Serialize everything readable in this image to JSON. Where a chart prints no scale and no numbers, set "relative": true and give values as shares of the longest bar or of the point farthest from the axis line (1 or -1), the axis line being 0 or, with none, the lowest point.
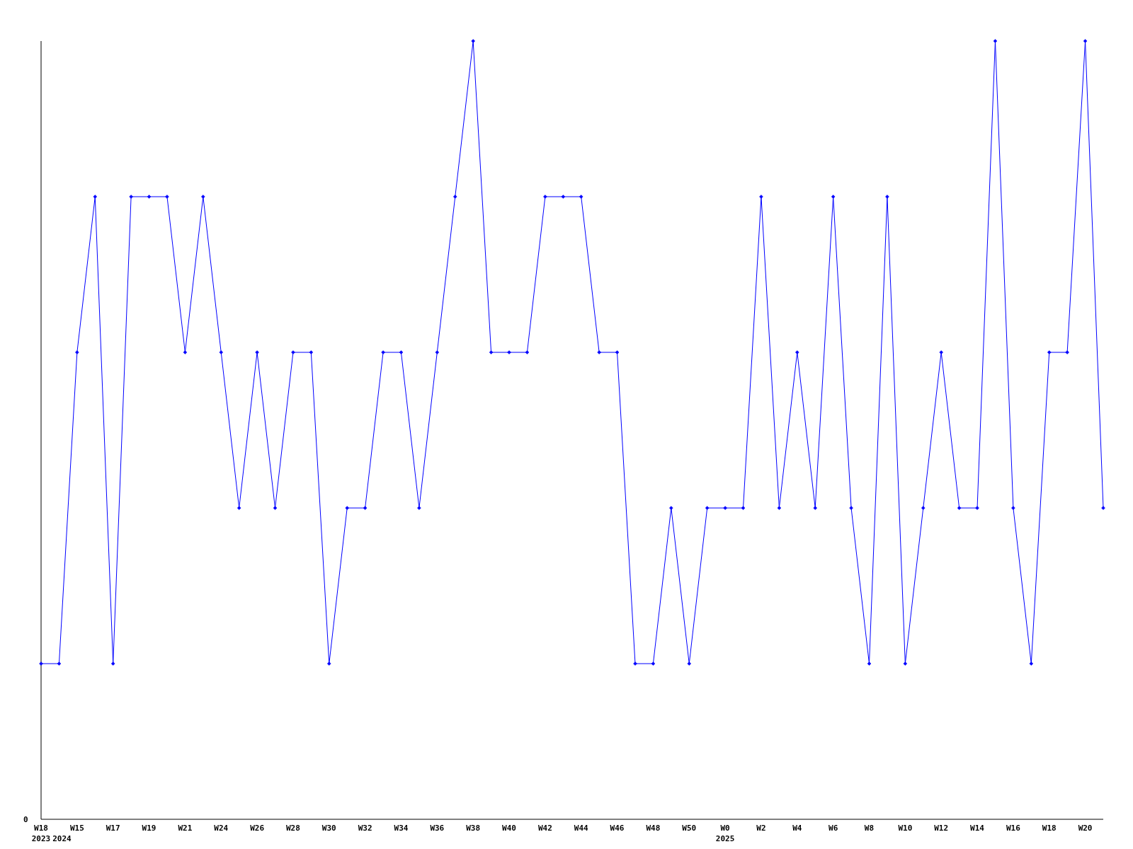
{
  "chart_data": {
    "type": "line",
    "relative": true,
    "color": "#0000ff",
    "marker": "diamond",
    "line_style": "solid",
    "categories": [
      "W18\n2023",
      "\n2024",
      "W15",
      null,
      "W17",
      null,
      "W19",
      null,
      "W21",
      null,
      "W24",
      null,
      "W26",
      null,
      "W28",
      null,
      "W30",
      null,
      "W32",
      null,
      "W34",
      null,
      "W36",
      null,
      "W38",
      null,
      "W40",
      null,
      "W42",
      null,
      "W44",
      null,
      "W46",
      null,
      "W48",
      null,
      "W50",
      null,
      "W0\n2025",
      null,
      "W2",
      null,
      "W4",
      null,
      "W6",
      null,
      "W8",
      null,
      "W10",
      null,
      "W12",
      null,
      "W14",
      null,
      "W16",
      null,
      "W18",
      null,
      "W20",
      null
    ],
    "values": [
      0.2,
      0.2,
      0.6,
      0.8,
      0.2,
      0.8,
      0.8,
      0.8,
      0.6,
      0.8,
      0.6,
      0.4,
      0.6,
      0.4,
      0.6,
      0.6,
      0.2,
      0.4,
      0.4,
      0.6,
      0.6,
      0.4,
      0.6,
      0.8,
      1,
      0.6,
      0.6,
      0.6,
      0.8,
      0.8,
      0.8,
      0.6,
      0.6,
      0.2,
      0.2,
      0.4,
      0.2,
      0.4,
      0.4,
      0.4,
      0.8,
      0.4,
      0.6,
      0.4,
      0.8,
      0.4,
      0.2,
      0.8,
      0.2,
      0.4,
      0.6,
      0.4,
      0.4,
      1,
      0.4,
      0.2,
      0.6,
      0.6,
      1,
      0.4
    ],
    "annotations": [
      "0"
    ]
  }
}
